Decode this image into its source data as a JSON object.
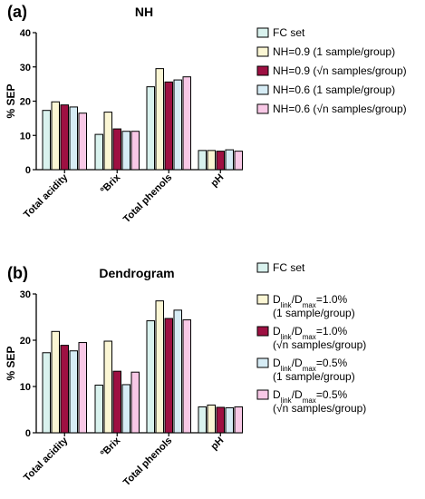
{
  "colors": {
    "fc": "#d9f2ee",
    "s1": "#fbf6d4",
    "sn": "#9e1042",
    "t1": "#d6ecf5",
    "tn": "#f8c8e6",
    "axis": "#000000"
  },
  "chart_data": [
    {
      "type": "bar",
      "panel": "(a)",
      "title": "NH",
      "ylabel": "% SEP",
      "xlabel": "",
      "ylim": [
        0,
        40
      ],
      "yticks": [
        "0",
        "10",
        "20",
        "30",
        "40"
      ],
      "grid": false,
      "legend_position": "right",
      "categories": [
        "Total acidity",
        "ºBrix",
        "Total phenols",
        "pH"
      ],
      "series": [
        {
          "name": "FC set",
          "color_key": "fc",
          "values": [
            17.3,
            10.3,
            24.2,
            5.6
          ]
        },
        {
          "name": "NH=0.9 (1 sample/group)",
          "color_key": "s1",
          "values": [
            19.8,
            16.8,
            29.5,
            5.6
          ]
        },
        {
          "name": "NH=0.9 (√n samples/group)",
          "color_key": "sn",
          "values": [
            18.9,
            11.9,
            25.6,
            5.4
          ]
        },
        {
          "name": "NH=0.6 (1 sample/group)",
          "color_key": "t1",
          "values": [
            18.3,
            11.2,
            26.2,
            5.8
          ]
        },
        {
          "name": "NH=0.6 (√n samples/group)",
          "color_key": "tn",
          "values": [
            16.5,
            11.2,
            27.1,
            5.4
          ]
        }
      ]
    },
    {
      "type": "bar",
      "panel": "(b)",
      "title": "Dendrogram",
      "ylabel": "% SEP",
      "xlabel": "",
      "ylim": [
        0,
        30
      ],
      "yticks": [
        "0",
        "10",
        "20",
        "30"
      ],
      "grid": false,
      "legend_position": "right",
      "categories": [
        "Total acidity",
        "ºBrix",
        "Total phenols",
        "pH"
      ],
      "series": [
        {
          "name": "FC set",
          "color_key": "fc",
          "values": [
            17.3,
            10.3,
            24.2,
            5.6
          ]
        },
        {
          "name": "Dlink/Dmax=1.0% (1 sample/group)",
          "line1": [
            "D",
            "link",
            "/D",
            "max",
            "=1.0%"
          ],
          "line2": "(1 sample/group)",
          "color_key": "s1",
          "values": [
            21.9,
            19.8,
            28.5,
            6.0
          ]
        },
        {
          "name": "Dlink/Dmax=1.0% (√n samples/group)",
          "line1": [
            "D",
            "link",
            "/D",
            "max",
            "=1.0%"
          ],
          "line2": "(√n samples/group)",
          "color_key": "sn",
          "values": [
            18.9,
            13.3,
            24.7,
            5.5
          ]
        },
        {
          "name": "Dlink/Dmax=0.5% (1 sample/group)",
          "line1": [
            "D",
            "link",
            "/D",
            "max",
            "=0.5%"
          ],
          "line2": "(1 sample/group)",
          "color_key": "t1",
          "values": [
            17.7,
            10.4,
            26.5,
            5.4
          ]
        },
        {
          "name": "Dlink/Dmax=0.5% (√n samples/group)",
          "line1": [
            "D",
            "link",
            "/D",
            "max",
            "=0.5%"
          ],
          "line2": "(√n samples/group)",
          "color_key": "tn",
          "values": [
            19.5,
            13.1,
            24.4,
            5.6
          ]
        }
      ]
    }
  ]
}
